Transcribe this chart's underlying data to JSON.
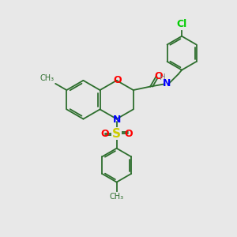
{
  "bg_color": "#e8e8e8",
  "bond_color": "#2d6e2d",
  "n_color": "#0000ff",
  "o_color": "#ff0000",
  "s_color": "#cccc00",
  "cl_color": "#00cc00",
  "lw": 1.3,
  "xlim": [
    0,
    10
  ],
  "ylim": [
    0,
    10
  ]
}
